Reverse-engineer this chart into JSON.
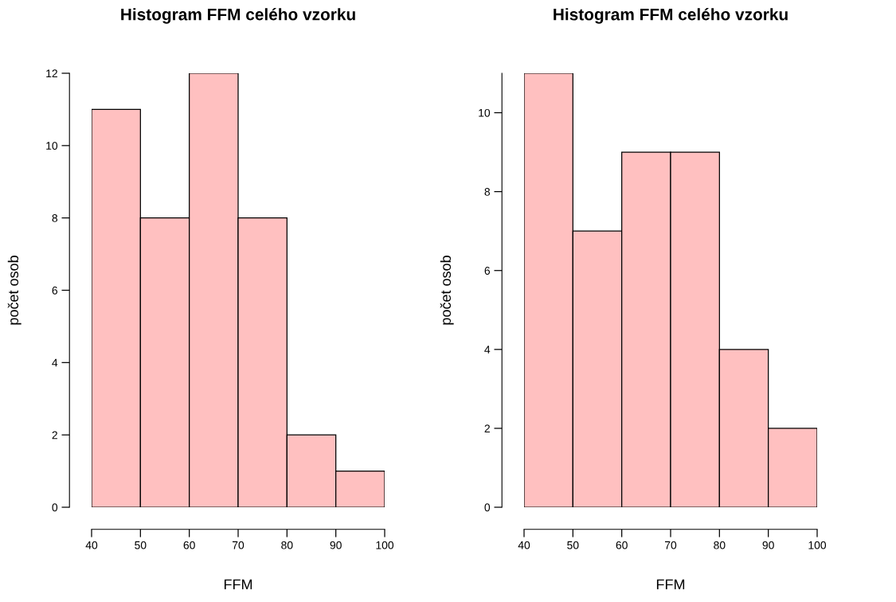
{
  "chart_data": [
    {
      "type": "histogram",
      "title": "Histogram FFM celého vzorku",
      "xlabel": "FFM",
      "ylabel": "počet osob",
      "bins": [
        40,
        50,
        60,
        70,
        80,
        90,
        100
      ],
      "values": [
        11,
        8,
        12,
        8,
        2,
        1
      ],
      "color": "#ffc0c0",
      "xlim": [
        40,
        100
      ],
      "xticks": [
        40,
        50,
        60,
        70,
        80,
        90,
        100
      ],
      "ylim": [
        0,
        12
      ],
      "yticks": [
        0,
        2,
        4,
        6,
        8,
        10,
        12
      ],
      "grid": false
    },
    {
      "type": "histogram",
      "title": "Histogram FFM celého vzorku",
      "xlabel": "FFM",
      "ylabel": "počet osob",
      "bins": [
        40,
        50,
        60,
        70,
        80,
        90,
        100
      ],
      "values": [
        11,
        7,
        9,
        9,
        4,
        2
      ],
      "color": "#ffc0c0",
      "xlim": [
        40,
        100
      ],
      "xticks": [
        40,
        50,
        60,
        70,
        80,
        90,
        100
      ],
      "ylim": [
        0,
        11
      ],
      "yticks": [
        0,
        2,
        4,
        6,
        8,
        10
      ],
      "grid": false
    }
  ]
}
